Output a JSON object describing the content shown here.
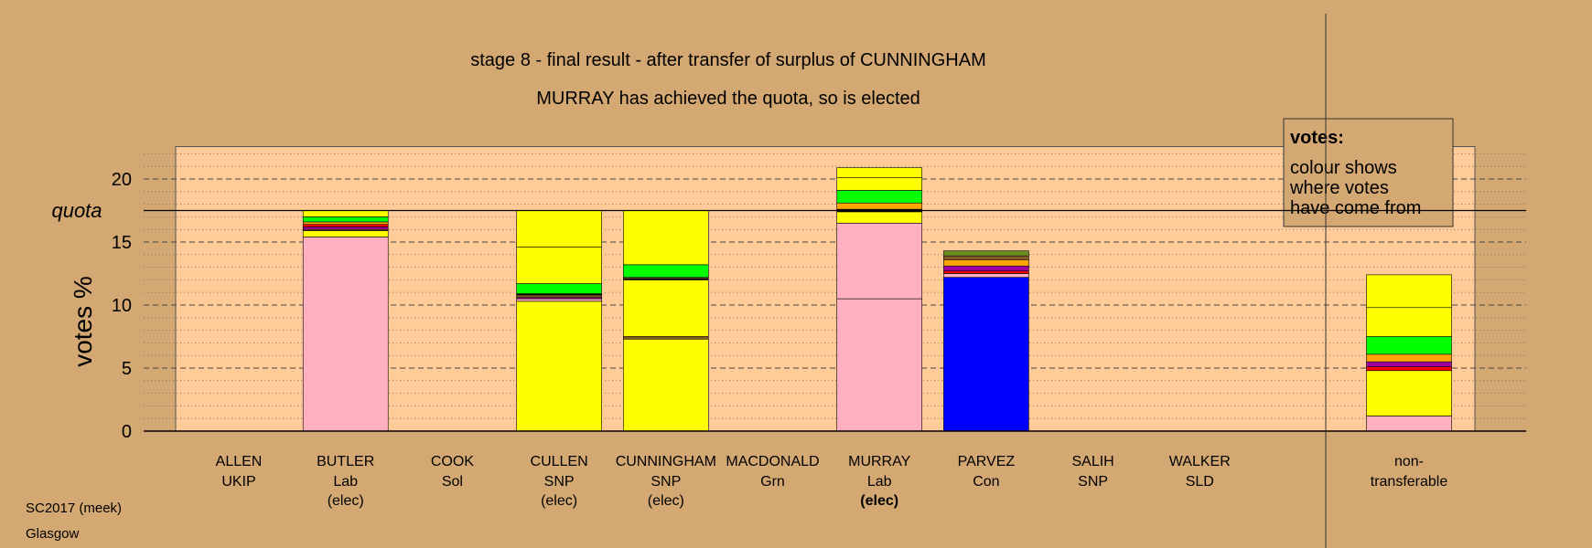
{
  "chart_data": {
    "type": "bar",
    "stacked": true,
    "title": "stage 8 - final result - after transfer of surplus of CUNNINGHAM",
    "subtitle": "MURRAY has achieved the quota, so is elected",
    "ylabel": "votes %",
    "ylim": [
      0,
      22.5
    ],
    "yticks": [
      0,
      5,
      10,
      15,
      20
    ],
    "quota": 17.5,
    "quota_label": "quota",
    "grid": "dashed major lines every 5, dotted minor lines every 1",
    "legend": {
      "title": "votes:",
      "lines": [
        "colour shows",
        "where votes",
        "have come from"
      ],
      "placement": "top-right"
    },
    "footer": [
      "SC2017 (meek)",
      "Glasgow"
    ],
    "colors": {
      "Lab": "#ffb0c0",
      "SNP": "#ffff00",
      "Grn": "#00ff00",
      "Con": "#0000ff",
      "SLD": "#ffa500",
      "Sol": "#ff0000",
      "UKIP": "#a000a0",
      "brown": "#8b5a2b",
      "olive": "#6b8e23",
      "black": "#000000"
    },
    "categories": [
      {
        "name": "ALLEN",
        "party": "UKIP",
        "status": "",
        "segments": []
      },
      {
        "name": "BUTLER",
        "party": "Lab",
        "status": "(elec)",
        "status_bold": false,
        "segments": [
          {
            "from": "Lab",
            "value": 15.4
          },
          {
            "from": "SNP",
            "value": 0.5
          },
          {
            "from": "brown",
            "value": 0.1
          },
          {
            "from": "UKIP",
            "value": 0.2
          },
          {
            "from": "Sol",
            "value": 0.2
          },
          {
            "from": "SLD",
            "value": 0.2
          },
          {
            "from": "Grn",
            "value": 0.4
          },
          {
            "from": "SNP",
            "value": 0.5
          }
        ]
      },
      {
        "name": "COOK",
        "party": "Sol",
        "status": "",
        "segments": []
      },
      {
        "name": "CULLEN",
        "party": "SNP",
        "status": "(elec)",
        "status_bold": false,
        "segments": [
          {
            "from": "SNP",
            "value": 10.3
          },
          {
            "from": "Lab",
            "value": 0.2
          },
          {
            "from": "UKIP",
            "value": 0.1
          },
          {
            "from": "brown",
            "value": 0.2
          },
          {
            "from": "black",
            "value": 0.1
          },
          {
            "from": "Grn",
            "value": 0.8
          },
          {
            "from": "SNP",
            "value": 2.9
          },
          {
            "from": "SNP",
            "value": 2.9
          }
        ]
      },
      {
        "name": "CUNNINGHAM",
        "party": "SNP",
        "status": "(elec)",
        "status_bold": false,
        "segments": [
          {
            "from": "SNP",
            "value": 7.3
          },
          {
            "from": "brown",
            "value": 0.2
          },
          {
            "from": "SNP",
            "value": 4.5
          },
          {
            "from": "black",
            "value": 0.1
          },
          {
            "from": "brown",
            "value": 0.1
          },
          {
            "from": "Grn",
            "value": 1.0
          },
          {
            "from": "SNP",
            "value": 4.3
          }
        ]
      },
      {
        "name": "MACDONALD",
        "party": "Grn",
        "status": "",
        "segments": []
      },
      {
        "name": "MURRAY",
        "party": "Lab",
        "status": "(elec)",
        "status_bold": true,
        "segments": [
          {
            "from": "Lab",
            "value": 10.5
          },
          {
            "from": "Lab",
            "value": 6.0
          },
          {
            "from": "SNP",
            "value": 0.9
          },
          {
            "from": "black",
            "value": 0.2
          },
          {
            "from": "SLD",
            "value": 0.5
          },
          {
            "from": "Grn",
            "value": 1.0
          },
          {
            "from": "SNP",
            "value": 1.0
          },
          {
            "from": "SNP",
            "value": 0.8
          }
        ]
      },
      {
        "name": "PARVEZ",
        "party": "Con",
        "status": "",
        "segments": [
          {
            "from": "Con",
            "value": 12.2
          },
          {
            "from": "Lab",
            "value": 0.3
          },
          {
            "from": "Sol",
            "value": 0.2
          },
          {
            "from": "UKIP",
            "value": 0.4
          },
          {
            "from": "SLD",
            "value": 0.5
          },
          {
            "from": "brown",
            "value": 0.3
          },
          {
            "from": "olive",
            "value": 0.4
          }
        ]
      },
      {
        "name": "SALIH",
        "party": "SNP",
        "status": "",
        "segments": []
      },
      {
        "name": "WALKER",
        "party": "SLD",
        "status": "",
        "segments": []
      },
      {
        "name": "non-",
        "party": "transferable",
        "status": "",
        "separate": true,
        "segments": [
          {
            "from": "Lab",
            "value": 1.2
          },
          {
            "from": "SNP",
            "value": 3.6
          },
          {
            "from": "Sol",
            "value": 0.3
          },
          {
            "from": "UKIP",
            "value": 0.4
          },
          {
            "from": "SLD",
            "value": 0.6
          },
          {
            "from": "Grn",
            "value": 1.4
          },
          {
            "from": "SNP",
            "value": 2.3
          },
          {
            "from": "SNP",
            "value": 2.6
          }
        ]
      }
    ]
  }
}
